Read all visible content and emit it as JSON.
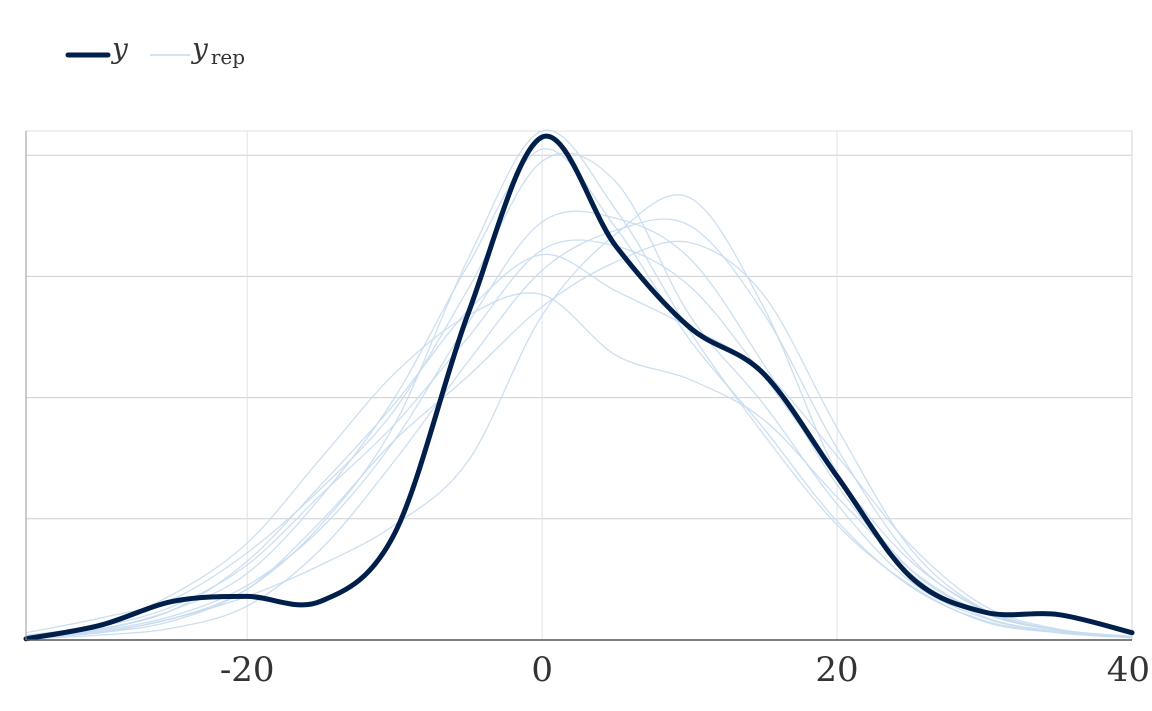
{
  "chart_data": {
    "type": "line",
    "title": "",
    "xlabel": "",
    "ylabel": "",
    "xlim": [
      -35,
      40
    ],
    "ylim": [
      0,
      0.042
    ],
    "x_ticks": [
      -20,
      0,
      20,
      40
    ],
    "x_tick_labels": [
      "-20",
      "0",
      "20",
      "40"
    ],
    "y_gridlines": [
      0.01,
      0.02,
      0.03,
      0.04
    ],
    "grid": true,
    "legend_position": "top-left",
    "legend": [
      {
        "label": "y",
        "subscript": "",
        "color": "#011f4b",
        "style": "thick"
      },
      {
        "label": "y",
        "subscript": "rep",
        "color": "#c6dbef",
        "style": "thin"
      }
    ],
    "x": [
      -35,
      -30,
      -25,
      -20,
      -15,
      -10,
      -5,
      0,
      5,
      10,
      15,
      20,
      25,
      30,
      35,
      40
    ],
    "series": [
      {
        "name": "y",
        "color": "#011f4b",
        "values": [
          0.0001,
          0.0012,
          0.0032,
          0.0036,
          0.0032,
          0.0088,
          0.027,
          0.0415,
          0.0325,
          0.0258,
          0.022,
          0.0135,
          0.0052,
          0.0023,
          0.0021,
          0.0006
        ]
      },
      {
        "name": "y_rep",
        "color": "#c6dbef",
        "values": [
          0.0002,
          0.0007,
          0.0018,
          0.0042,
          0.0095,
          0.0178,
          0.0315,
          0.042,
          0.0355,
          0.0255,
          0.017,
          0.0095,
          0.0045,
          0.0015,
          0.0006,
          0.0002
        ]
      },
      {
        "name": "y_rep",
        "color": "#c6dbef",
        "values": [
          0.0003,
          0.0009,
          0.0025,
          0.0055,
          0.0118,
          0.02,
          0.031,
          0.0405,
          0.034,
          0.0248,
          0.0175,
          0.0098,
          0.0044,
          0.0016,
          0.0006,
          0.0002
        ]
      },
      {
        "name": "y_rep",
        "color": "#c6dbef",
        "values": [
          0.0004,
          0.0013,
          0.0038,
          0.008,
          0.015,
          0.022,
          0.0268,
          0.0285,
          0.0235,
          0.0215,
          0.0182,
          0.0118,
          0.0058,
          0.0022,
          0.0008,
          0.0003
        ]
      },
      {
        "name": "y_rep",
        "color": "#c6dbef",
        "values": [
          0.0002,
          0.0008,
          0.002,
          0.0045,
          0.0092,
          0.0165,
          0.0262,
          0.0345,
          0.0348,
          0.0315,
          0.0228,
          0.0128,
          0.0055,
          0.0019,
          0.0007,
          0.0002
        ]
      },
      {
        "name": "y_rep",
        "color": "#c6dbef",
        "values": [
          0.0001,
          0.0004,
          0.001,
          0.0028,
          0.0075,
          0.0148,
          0.023,
          0.0305,
          0.0338,
          0.0342,
          0.027,
          0.0158,
          0.0068,
          0.0024,
          0.0008,
          0.0002
        ]
      },
      {
        "name": "y_rep",
        "color": "#c6dbef",
        "values": [
          0.0002,
          0.0006,
          0.0016,
          0.0042,
          0.0098,
          0.0165,
          0.0218,
          0.0275,
          0.0312,
          0.0328,
          0.0285,
          0.0175,
          0.0075,
          0.0025,
          0.0008,
          0.0002
        ]
      },
      {
        "name": "y_rep",
        "color": "#c6dbef",
        "values": [
          0.0003,
          0.0011,
          0.0028,
          0.0062,
          0.012,
          0.0178,
          0.025,
          0.0322,
          0.0325,
          0.0292,
          0.0218,
          0.0135,
          0.0065,
          0.0025,
          0.0008,
          0.0002
        ]
      },
      {
        "name": "y_rep",
        "color": "#c6dbef",
        "values": [
          0.0006,
          0.0018,
          0.0034,
          0.0072,
          0.0125,
          0.019,
          0.029,
          0.0395,
          0.0378,
          0.0268,
          0.0195,
          0.0112,
          0.0048,
          0.0018,
          0.0006,
          0.0002
        ]
      },
      {
        "name": "y_rep",
        "color": "#c6dbef",
        "values": [
          0.0002,
          0.0006,
          0.0018,
          0.0036,
          0.0062,
          0.0095,
          0.0148,
          0.0268,
          0.0335,
          0.0365,
          0.0275,
          0.0138,
          0.0058,
          0.0022,
          0.0008,
          0.0002
        ]
      },
      {
        "name": "y_rep",
        "color": "#c6dbef",
        "values": [
          0.0003,
          0.0009,
          0.0025,
          0.0065,
          0.0128,
          0.0195,
          0.0272,
          0.0318,
          0.0288,
          0.0258,
          0.0222,
          0.0152,
          0.0078,
          0.0028,
          0.0009,
          0.0003
        ]
      }
    ]
  }
}
